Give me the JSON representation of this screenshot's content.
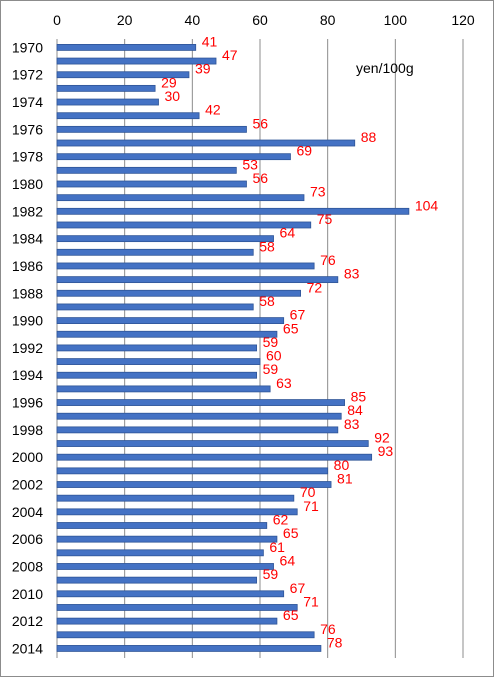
{
  "chart_data": {
    "type": "bar",
    "orientation": "horizontal",
    "unit_label": "yen/100g",
    "xlim": [
      0,
      120
    ],
    "x_ticks": [
      "0",
      "20",
      "40",
      "60",
      "80",
      "100",
      "120"
    ],
    "grid": "vertical",
    "categories": [
      "1970",
      "1971",
      "1972",
      "1973",
      "1974",
      "1975",
      "1976",
      "1977",
      "1978",
      "1979",
      "1980",
      "1981",
      "1982",
      "1983",
      "1984",
      "1985",
      "1986",
      "1987",
      "1988",
      "1989",
      "1990",
      "1991",
      "1992",
      "1993",
      "1994",
      "1995",
      "1996",
      "1997",
      "1998",
      "1999",
      "2000",
      "2001",
      "2002",
      "2003",
      "2004",
      "2005",
      "2006",
      "2007",
      "2008",
      "2009",
      "2010",
      "2011",
      "2012",
      "2013",
      "2014"
    ],
    "category_labels_shown": [
      "1970",
      "",
      "1972",
      "",
      "1974",
      "",
      "1976",
      "",
      "1978",
      "",
      "1980",
      "",
      "1982",
      "",
      "1984",
      "",
      "1986",
      "",
      "1988",
      "",
      "1990",
      "",
      "1992",
      "",
      "1994",
      "",
      "1996",
      "",
      "1998",
      "",
      "2000",
      "",
      "2002",
      "",
      "2004",
      "",
      "2006",
      "",
      "2008",
      "",
      "2010",
      "",
      "2012",
      "",
      "2014"
    ],
    "values": [
      41,
      47,
      39,
      29,
      30,
      42,
      56,
      88,
      69,
      53,
      56,
      73,
      104,
      75,
      64,
      58,
      76,
      83,
      72,
      58,
      67,
      65,
      59,
      60,
      59,
      63,
      85,
      84,
      83,
      92,
      93,
      80,
      81,
      70,
      71,
      62,
      65,
      61,
      64,
      59,
      67,
      71,
      65,
      76,
      78
    ],
    "colors": {
      "bar": "#4472c4",
      "bar_dark": "#2f5597",
      "label": "#ff0000",
      "grid": "#8c8c8c"
    }
  }
}
